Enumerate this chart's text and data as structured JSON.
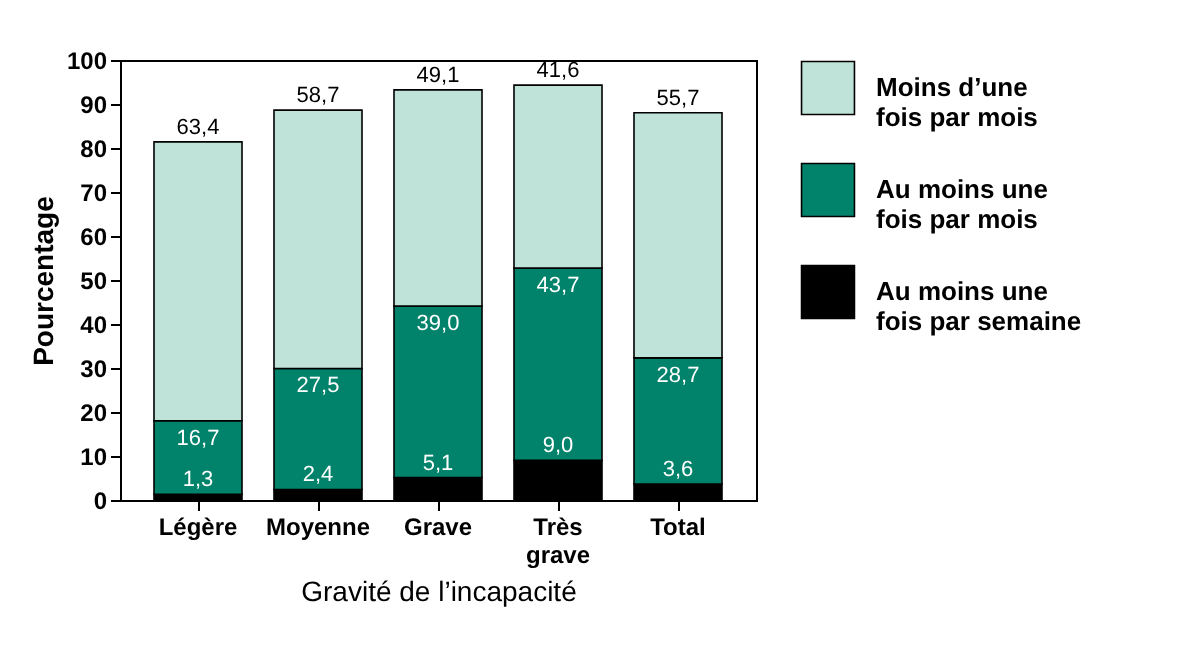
{
  "chart_data": {
    "type": "bar",
    "stacked": true,
    "xlabel": "Gravité de l’incapacité",
    "ylabel": "Pourcentage",
    "categories": [
      "Légère",
      "Moyenne",
      "Grave",
      "Très grave",
      "Total"
    ],
    "series": [
      {
        "name": "Au moins une fois par semaine",
        "color": "#000000",
        "values": [
          1.3,
          2.4,
          5.1,
          9.0,
          3.6
        ],
        "value_labels": [
          "1,3",
          "2,4",
          "5,1",
          "9,0",
          "3,6"
        ]
      },
      {
        "name": "Au moins une fois par mois",
        "color": "#00826b",
        "values": [
          16.7,
          27.5,
          39.0,
          43.7,
          28.7
        ],
        "value_labels": [
          "16,7",
          "27,5",
          "39,0",
          "43,7",
          "28,7"
        ]
      },
      {
        "name": "Moins d’une fois par mois",
        "color": "#bfe3d9",
        "values": [
          63.4,
          58.7,
          49.1,
          41.6,
          55.7
        ],
        "value_labels": [
          "63,4",
          "58,7",
          "49,1",
          "41,6",
          "55,7"
        ]
      }
    ],
    "ylim": [
      0,
      100
    ],
    "yticks": [
      0,
      10,
      20,
      30,
      40,
      50,
      60,
      70,
      80,
      90,
      100
    ],
    "grid": false,
    "legend": "right"
  }
}
